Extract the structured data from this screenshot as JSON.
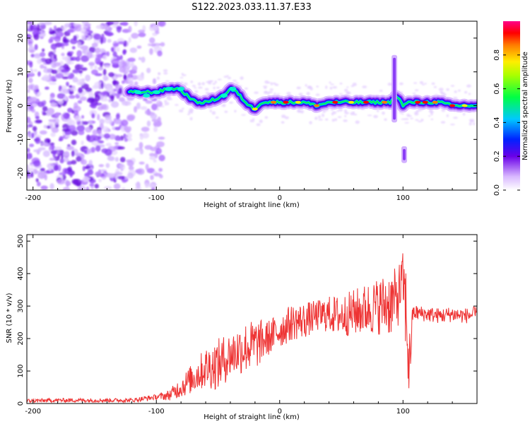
{
  "title": "S122.2023.033.11.37.E33",
  "chart_data": [
    {
      "type": "heatmap",
      "xlabel": "Height of straight line (km)",
      "ylabel": "Frequency (Hz)",
      "xlim": [
        -205,
        160
      ],
      "ylim": [
        -25,
        25
      ],
      "x_ticks": [
        -200,
        -100,
        0,
        100
      ],
      "y_ticks": [
        -20,
        -10,
        0,
        10,
        20
      ],
      "x_tick_labels": [
        "-200",
        "-100",
        "0",
        "100"
      ],
      "y_tick_labels": [
        "-20",
        "-10",
        "0",
        "10",
        "20"
      ],
      "colorbar": {
        "label": "Normalized spectral amplitude",
        "range": [
          0,
          1
        ],
        "ticks": [
          0.0,
          0.2,
          0.4,
          0.6,
          0.8
        ],
        "tick_labels": [
          "0.0",
          "0.2",
          "0.4",
          "0.6",
          "0.8"
        ],
        "colormap": "rainbow (white, purple, blue, cyan, green, yellow, orange, red, magenta)"
      },
      "dominant_frequency_track": {
        "x": [
          -122,
          -110,
          -100,
          -90,
          -82,
          -75,
          -68,
          -60,
          -52,
          -45,
          -40,
          -35,
          -30,
          -25,
          -20,
          -15,
          -10,
          0,
          10,
          20,
          30,
          40,
          50,
          60,
          70,
          80,
          90,
          95,
          100,
          105,
          110,
          120,
          130,
          140,
          150,
          160
        ],
        "y": [
          4,
          4,
          4,
          5,
          5,
          3,
          1,
          1,
          2,
          3,
          5,
          4,
          2,
          0,
          -1,
          1,
          1,
          1,
          1,
          1,
          0,
          1,
          1,
          1,
          1,
          1,
          1,
          3,
          0,
          1,
          1,
          1,
          1,
          0,
          0,
          0
        ]
      },
      "features": [
        {
          "x": 93,
          "y_range": [
            -5,
            15
          ],
          "note": "vertical broadband streak"
        },
        {
          "x": 101,
          "y_range": [
            -17,
            -12
          ],
          "note": "isolated blob"
        }
      ]
    },
    {
      "type": "line",
      "xlabel": "Height of straight line (km)",
      "ylabel": "SNR (10 * v/v)",
      "xlim": [
        -205,
        160
      ],
      "ylim": [
        0,
        520
      ],
      "x_ticks": [
        -200,
        -100,
        0,
        100
      ],
      "y_ticks": [
        0,
        100,
        200,
        300,
        400,
        500
      ],
      "x_tick_labels": [
        "-200",
        "-100",
        "0",
        "100"
      ],
      "y_tick_labels": [
        "0",
        "100",
        "200",
        "300",
        "400",
        "500"
      ],
      "color": "#ee3333",
      "series": [
        {
          "x": [
            -205,
            -180,
            -160,
            -140,
            -120,
            -110,
            -100,
            -90,
            -80,
            -70,
            -60,
            -50,
            -40,
            -30,
            -20,
            -10,
            0,
            10,
            20,
            30,
            40,
            50,
            60,
            70,
            80,
            90,
            95,
            100,
            103,
            105,
            108,
            120,
            130,
            140,
            150,
            160
          ],
          "y": [
            8,
            10,
            10,
            10,
            10,
            15,
            20,
            25,
            50,
            80,
            110,
            120,
            150,
            170,
            180,
            200,
            225,
            250,
            255,
            270,
            275,
            270,
            280,
            290,
            300,
            310,
            320,
            380,
            260,
            100,
            280,
            275,
            270,
            275,
            270,
            275
          ],
          "spread": [
            8,
            8,
            8,
            8,
            8,
            10,
            10,
            20,
            40,
            60,
            80,
            100,
            90,
            100,
            100,
            70,
            70,
            70,
            70,
            60,
            70,
            80,
            90,
            100,
            110,
            130,
            120,
            110,
            200,
            150,
            30,
            30,
            30,
            30,
            30,
            30
          ]
        }
      ]
    }
  ]
}
